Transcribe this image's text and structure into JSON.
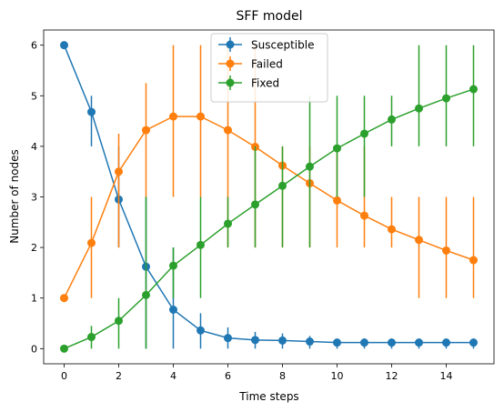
{
  "chart_data": {
    "type": "line",
    "title": "SFF model",
    "xlabel": "Time steps",
    "ylabel": "Number of nodes",
    "xlim": [
      -0.75,
      15.75
    ],
    "ylim": [
      -0.3,
      6.3
    ],
    "xticks": [
      0,
      2,
      4,
      6,
      8,
      10,
      12,
      14
    ],
    "yticks": [
      0,
      1,
      2,
      3,
      4,
      5,
      6
    ],
    "legend_position": "top-center",
    "x": [
      0,
      1,
      2,
      3,
      4,
      5,
      6,
      7,
      8,
      9,
      10,
      11,
      12,
      13,
      14,
      15
    ],
    "series": [
      {
        "name": "Susceptible",
        "color": "#1f77b4",
        "values": [
          6.0,
          4.68,
          2.95,
          1.62,
          0.77,
          0.36,
          0.21,
          0.17,
          0.16,
          0.14,
          0.12,
          0.12,
          0.12,
          0.12,
          0.12,
          0.12
        ],
        "err_low": [
          6.0,
          4.0,
          2.0,
          0.0,
          0.0,
          0.0,
          0.0,
          0.0,
          0.0,
          0.0,
          0.0,
          0.0,
          0.0,
          0.0,
          0.0,
          0.0
        ],
        "err_high": [
          6.0,
          5.0,
          4.0,
          3.0,
          2.0,
          0.7,
          0.42,
          0.33,
          0.3,
          0.25,
          0.2,
          0.2,
          0.2,
          0.2,
          0.2,
          0.2
        ]
      },
      {
        "name": "Failed",
        "color": "#ff7f0e",
        "values": [
          1.0,
          2.09,
          3.5,
          4.32,
          4.59,
          4.59,
          4.32,
          3.99,
          3.62,
          3.27,
          2.93,
          2.63,
          2.36,
          2.15,
          1.94,
          1.75
        ],
        "err_low": [
          1.0,
          1.0,
          2.0,
          3.0,
          3.0,
          3.0,
          2.0,
          2.0,
          2.0,
          2.0,
          2.0,
          2.0,
          2.0,
          1.0,
          1.0,
          1.0
        ],
        "err_high": [
          1.0,
          3.0,
          4.25,
          5.25,
          6.0,
          6.0,
          6.0,
          6.0,
          4.0,
          4.0,
          4.0,
          4.0,
          3.0,
          3.0,
          3.0,
          3.0
        ]
      },
      {
        "name": "Fixed",
        "color": "#2ca02c",
        "values": [
          0.0,
          0.23,
          0.55,
          1.06,
          1.64,
          2.05,
          2.47,
          2.85,
          3.22,
          3.6,
          3.96,
          4.25,
          4.53,
          4.75,
          4.95,
          5.13
        ],
        "err_low": [
          0.0,
          0.0,
          0.0,
          0.0,
          1.0,
          1.0,
          2.0,
          2.0,
          2.0,
          2.0,
          3.0,
          3.0,
          4.0,
          4.0,
          4.0,
          4.0
        ],
        "err_high": [
          0.0,
          0.45,
          1.0,
          3.0,
          2.0,
          3.0,
          3.0,
          4.0,
          4.0,
          5.0,
          5.0,
          5.0,
          5.0,
          6.0,
          6.0,
          6.0
        ]
      }
    ]
  }
}
